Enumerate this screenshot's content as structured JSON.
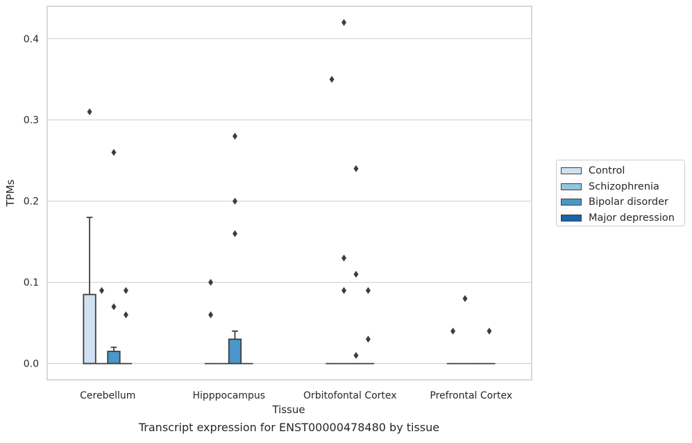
{
  "chart_data": {
    "type": "boxplot",
    "title": "",
    "caption": "Transcript expression for ENST00000478480 by tissue",
    "xlabel": "Tissue",
    "ylabel": "TPMs",
    "categories": [
      "Cerebellum",
      "Hipppocampus",
      "Orbitofontal Cortex",
      "Prefrontal Cortex"
    ],
    "ylim": [
      -0.02,
      0.44
    ],
    "yticks": [
      0.0,
      0.1,
      0.2,
      0.3,
      0.4
    ],
    "ytick_labels": [
      "0.0",
      "0.1",
      "0.2",
      "0.3",
      "0.4"
    ],
    "grid": "horizontal",
    "legend_position": "right",
    "series": [
      {
        "name": "Control",
        "color": "#d0e1f2",
        "boxes": [
          {
            "category": "Cerebellum",
            "q1": 0.0,
            "median": 0.0,
            "q3": 0.085,
            "whisker_low": 0.0,
            "whisker_high": 0.18,
            "outliers": [
              0.31
            ]
          },
          {
            "category": "Hipppocampus",
            "q1": 0.0,
            "median": 0.0,
            "q3": 0.0,
            "whisker_low": 0.0,
            "whisker_high": 0.0,
            "outliers": [
              0.1,
              0.06
            ]
          },
          {
            "category": "Orbitofontal Cortex",
            "q1": 0.0,
            "median": 0.0,
            "q3": 0.0,
            "whisker_low": 0.0,
            "whisker_high": 0.0,
            "outliers": [
              0.35
            ]
          },
          {
            "category": "Prefrontal Cortex",
            "q1": 0.0,
            "median": 0.0,
            "q3": 0.0,
            "whisker_low": 0.0,
            "whisker_high": 0.0,
            "outliers": [
              0.04
            ]
          }
        ]
      },
      {
        "name": "Schizophrenia",
        "color": "#94c4df",
        "boxes": [
          {
            "category": "Cerebellum",
            "q1": 0.0,
            "median": 0.0,
            "q3": 0.0,
            "whisker_low": 0.0,
            "whisker_high": 0.0,
            "outliers": [
              0.09
            ]
          },
          {
            "category": "Hipppocampus",
            "q1": 0.0,
            "median": 0.0,
            "q3": 0.0,
            "whisker_low": 0.0,
            "whisker_high": 0.0,
            "outliers": []
          },
          {
            "category": "Orbitofontal Cortex",
            "q1": 0.0,
            "median": 0.0,
            "q3": 0.0,
            "whisker_low": 0.0,
            "whisker_high": 0.0,
            "outliers": [
              0.42,
              0.13,
              0.09
            ]
          },
          {
            "category": "Prefrontal Cortex",
            "q1": 0.0,
            "median": 0.0,
            "q3": 0.0,
            "whisker_low": 0.0,
            "whisker_high": 0.0,
            "outliers": [
              0.08
            ]
          }
        ]
      },
      {
        "name": "Bipolar disorder",
        "color": "#4a98c9",
        "boxes": [
          {
            "category": "Cerebellum",
            "q1": 0.0,
            "median": 0.0,
            "q3": 0.015,
            "whisker_low": 0.0,
            "whisker_high": 0.02,
            "outliers": [
              0.26,
              0.07
            ]
          },
          {
            "category": "Hipppocampus",
            "q1": 0.0,
            "median": 0.0,
            "q3": 0.03,
            "whisker_low": 0.0,
            "whisker_high": 0.04,
            "outliers": [
              0.28,
              0.2,
              0.16
            ]
          },
          {
            "category": "Orbitofontal Cortex",
            "q1": 0.0,
            "median": 0.0,
            "q3": 0.0,
            "whisker_low": 0.0,
            "whisker_high": 0.0,
            "outliers": [
              0.24,
              0.11,
              0.01
            ]
          },
          {
            "category": "Prefrontal Cortex",
            "q1": 0.0,
            "median": 0.0,
            "q3": 0.0,
            "whisker_low": 0.0,
            "whisker_high": 0.0,
            "outliers": []
          }
        ]
      },
      {
        "name": "Major depression",
        "color": "#1764ab",
        "boxes": [
          {
            "category": "Cerebellum",
            "q1": 0.0,
            "median": 0.0,
            "q3": 0.0,
            "whisker_low": 0.0,
            "whisker_high": 0.0,
            "outliers": [
              0.09,
              0.06
            ]
          },
          {
            "category": "Hipppocampus",
            "q1": 0.0,
            "median": 0.0,
            "q3": 0.0,
            "whisker_low": 0.0,
            "whisker_high": 0.0,
            "outliers": []
          },
          {
            "category": "Orbitofontal Cortex",
            "q1": 0.0,
            "median": 0.0,
            "q3": 0.0,
            "whisker_low": 0.0,
            "whisker_high": 0.0,
            "outliers": [
              0.09,
              0.03
            ]
          },
          {
            "category": "Prefrontal Cortex",
            "q1": 0.0,
            "median": 0.0,
            "q3": 0.0,
            "whisker_low": 0.0,
            "whisker_high": 0.0,
            "outliers": [
              0.04
            ]
          }
        ]
      }
    ]
  }
}
